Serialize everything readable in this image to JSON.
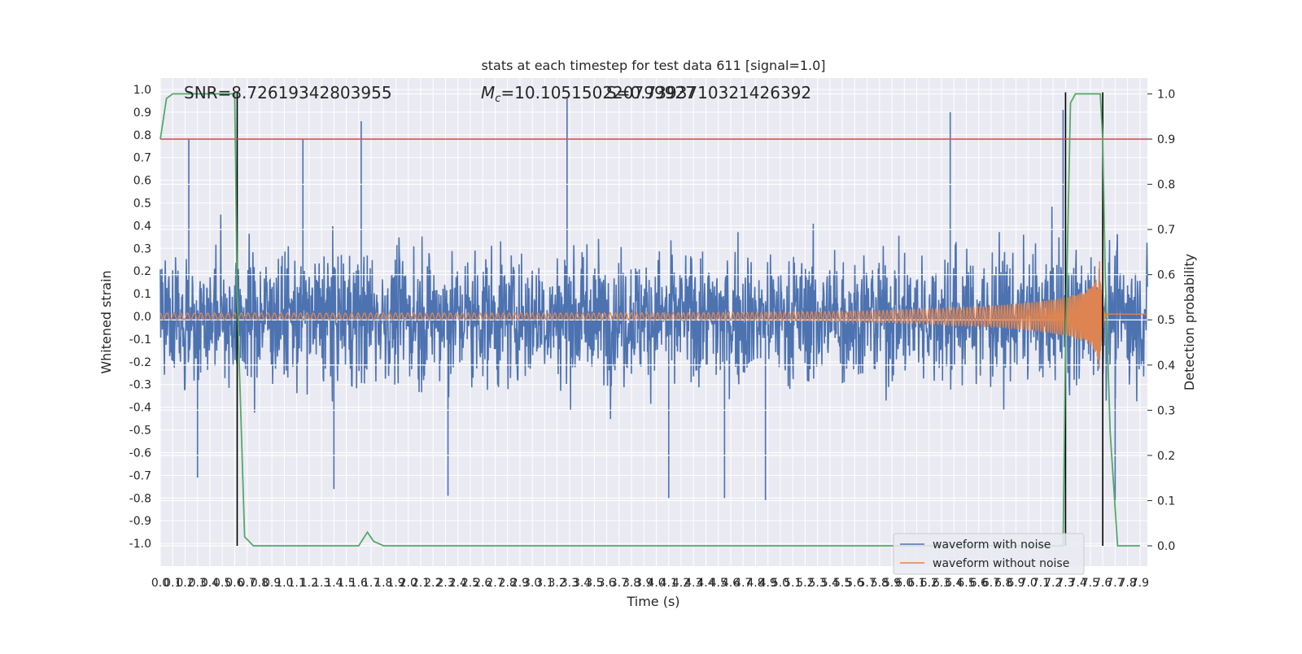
{
  "chart_data": {
    "type": "line",
    "title": "stats at each timestep for test data 611 [signal=1.0]",
    "xlabel": "Time (s)",
    "ylabel": "Whitened strain",
    "ylabel_right": "Detection probability",
    "xlim": [
      0,
      7.96
    ],
    "ylim": [
      -1.1,
      1.05
    ],
    "ylim_right": [
      -0.045,
      1.035
    ],
    "x_ticks": [
      "0.0",
      "0.1",
      "0.2",
      "0.3",
      "0.4",
      "0.5",
      "0.6",
      "0.7",
      "0.8",
      "0.9",
      "1.0",
      "1.1",
      "1.2",
      "1.3",
      "1.4",
      "1.5",
      "1.6",
      "1.7",
      "1.8",
      "1.9",
      "2.0",
      "2.1",
      "2.2",
      "2.3",
      "2.4",
      "2.5",
      "2.6",
      "2.7",
      "2.8",
      "2.9",
      "3.0",
      "3.1",
      "3.2",
      "3.3",
      "3.4",
      "3.5",
      "3.6",
      "3.7",
      "3.8",
      "3.9",
      "4.0",
      "4.1",
      "4.2",
      "4.3",
      "4.4",
      "4.5",
      "4.6",
      "4.7",
      "4.8",
      "4.9",
      "5.0",
      "5.1",
      "5.2",
      "5.3",
      "5.4",
      "5.5",
      "5.6",
      "5.7",
      "5.8",
      "5.9",
      "6.0",
      "6.1",
      "6.2",
      "6.3",
      "6.4",
      "6.5",
      "6.6",
      "6.7",
      "6.8",
      "6.9",
      "7.0",
      "7.1",
      "7.2",
      "7.3",
      "7.4",
      "7.5",
      "7.6",
      "7.7",
      "7.8",
      "7.9"
    ],
    "y_ticks": [
      "1.0",
      "0.9",
      "0.8",
      "0.7",
      "0.6",
      "0.5",
      "0.4",
      "0.3",
      "0.2",
      "0.1",
      "0.0",
      "-0.1",
      "-0.2",
      "-0.3",
      "-0.4",
      "-0.5",
      "-0.6",
      "-0.7",
      "-0.8",
      "-0.9",
      "-1.0"
    ],
    "y_ticks_right": [
      "1.0",
      "0.9",
      "0.8",
      "0.7",
      "0.6",
      "0.5",
      "0.4",
      "0.3",
      "0.2",
      "0.1",
      "0.0"
    ],
    "annotations": {
      "snr": "SNR=8.72619342803955",
      "mc_prefix": "M",
      "mc_sub": "c",
      "mc_value": "=10.105150220799927",
      "overlap": "S=0.7393710321426392"
    },
    "threshold_right": 0.9,
    "vlines_x": [
      0.62,
      7.3,
      7.6
    ],
    "noisy_peaks": [
      {
        "x": 0.23,
        "y": 0.78
      },
      {
        "x": 1.15,
        "y": 0.78
      },
      {
        "x": 1.62,
        "y": 0.86
      },
      {
        "x": 3.28,
        "y": 0.96
      },
      {
        "x": 6.37,
        "y": 0.9
      },
      {
        "x": 7.28,
        "y": 0.91
      },
      {
        "x": 0.3,
        "y": -0.71
      },
      {
        "x": 1.4,
        "y": -0.76
      },
      {
        "x": 2.32,
        "y": -0.79
      },
      {
        "x": 4.1,
        "y": -0.8
      },
      {
        "x": 4.55,
        "y": -0.8
      },
      {
        "x": 4.88,
        "y": -0.81
      },
      {
        "x": 7.7,
        "y": -0.81
      }
    ],
    "clean_waveform": {
      "amp_start": 0.015,
      "amp_end": 0.3,
      "merger_time": 7.58,
      "ringdown_end": 7.62,
      "post_merger_value": 0.01
    },
    "detection_probability": {
      "x": [
        0.0,
        0.05,
        0.1,
        0.6,
        0.62,
        0.68,
        0.75,
        1.6,
        1.67,
        1.72,
        1.8,
        7.28,
        7.3,
        7.34,
        7.38,
        7.44,
        7.58,
        7.6,
        7.62,
        7.66,
        7.72,
        7.78,
        7.9
      ],
      "y": [
        0.9,
        0.99,
        1.0,
        1.0,
        0.55,
        0.02,
        0.0,
        0.0,
        0.03,
        0.01,
        0.0,
        0.0,
        0.45,
        0.98,
        1.0,
        1.0,
        1.0,
        0.9,
        0.6,
        0.25,
        0.0,
        0.0,
        0.0
      ]
    },
    "series": [
      {
        "name": "waveform with noise",
        "color": "#4c72b0"
      },
      {
        "name": "waveform without noise",
        "color": "#dd8452"
      }
    ],
    "colors": {
      "probability": "#55a868",
      "threshold": "#c44e52",
      "vline": "#000000",
      "plot_bg": "#eaeaf2",
      "grid": "#ffffff"
    },
    "grid": true,
    "legend_position": "lower-right"
  }
}
